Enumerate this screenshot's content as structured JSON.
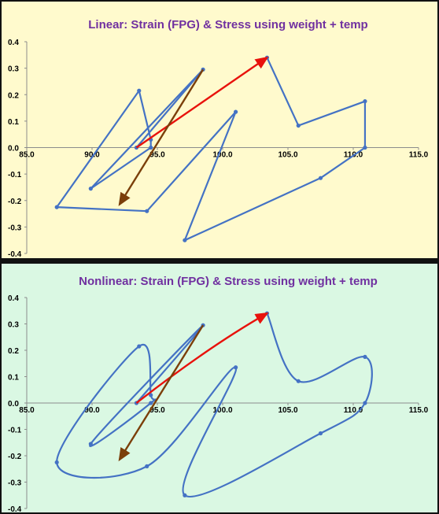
{
  "colors": {
    "series": "#4472C4",
    "red_arrow": "#E8120C",
    "brown_arrow": "#7B3F0A",
    "title": "#7030A0",
    "top_bg": "#FFFACD",
    "bottom_bg": "#DAF8E3"
  },
  "chart_data": [
    {
      "type": "line",
      "smooth": false,
      "title": "Linear:  Strain (FPG) & Stress using weight + temp",
      "xlim": [
        85,
        115
      ],
      "ylim": [
        -0.4,
        0.4
      ],
      "x_ticks": [
        "85.0",
        "90.0",
        "95.0",
        "100.0",
        "105.0",
        "110.0",
        "115.0"
      ],
      "y_ticks": [
        "0.4",
        "0.3",
        "0.2",
        "0.1",
        "0.0",
        "-0.1",
        "-0.2",
        "-0.3",
        "-0.4"
      ],
      "grid": false,
      "series": [
        {
          "points": [
            [
              93.4,
              0.0
            ],
            [
              98.5,
              0.295
            ],
            [
              89.9,
              -0.155
            ],
            [
              94.5,
              0.0
            ],
            [
              94.5,
              0.03
            ],
            [
              93.6,
              0.215
            ],
            [
              87.3,
              -0.225
            ],
            [
              94.2,
              -0.24
            ],
            [
              101.0,
              0.135
            ],
            [
              97.1,
              -0.35
            ],
            [
              107.5,
              -0.115
            ],
            [
              110.9,
              0.0
            ],
            [
              110.9,
              0.175
            ],
            [
              105.8,
              0.083
            ],
            [
              103.4,
              0.34
            ]
          ]
        }
      ],
      "arrows": [
        {
          "from": [
            93.4,
            0.0
          ],
          "to": [
            103.4,
            0.34
          ],
          "color": "red"
        },
        {
          "from": [
            98.5,
            0.295
          ],
          "to": [
            92.1,
            -0.215
          ],
          "color": "brown"
        }
      ]
    },
    {
      "type": "line",
      "smooth": true,
      "title": "Nonlinear:  Strain (FPG) & Stress using weight + temp",
      "xlim": [
        85,
        115
      ],
      "ylim": [
        -0.4,
        0.4
      ],
      "x_ticks": [
        "85.0",
        "90.0",
        "95.0",
        "100.0",
        "105.0",
        "110.0",
        "115.0"
      ],
      "y_ticks": [
        "0.4",
        "0.3",
        "0.2",
        "0.1",
        "0.0",
        "-0.1",
        "-0.2",
        "-0.3",
        "-0.4"
      ],
      "grid": false,
      "series": [
        {
          "points": [
            [
              93.4,
              0.0
            ],
            [
              98.5,
              0.295
            ],
            [
              89.9,
              -0.155
            ],
            [
              94.5,
              0.0
            ],
            [
              94.5,
              0.03
            ],
            [
              93.6,
              0.215
            ],
            [
              87.3,
              -0.225
            ],
            [
              94.2,
              -0.24
            ],
            [
              101.0,
              0.135
            ],
            [
              97.1,
              -0.35
            ],
            [
              107.5,
              -0.115
            ],
            [
              110.9,
              0.0
            ],
            [
              110.9,
              0.175
            ],
            [
              105.8,
              0.083
            ],
            [
              103.4,
              0.34
            ]
          ]
        }
      ],
      "arrows": [
        {
          "from": [
            93.4,
            0.0
          ],
          "to": [
            103.4,
            0.34
          ],
          "color": "red",
          "curved": true
        },
        {
          "from": [
            98.5,
            0.295
          ],
          "to": [
            92.1,
            -0.215
          ],
          "color": "brown"
        }
      ]
    }
  ]
}
